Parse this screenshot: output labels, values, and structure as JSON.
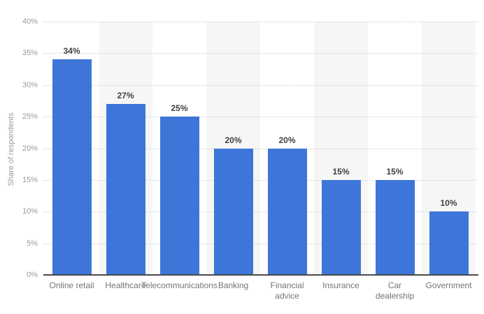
{
  "chart_data": {
    "type": "bar",
    "categories": [
      "Online retail",
      "Healthcare",
      "Telecommunications",
      "Banking",
      "Financial\nadvice",
      "Insurance",
      "Car\ndealership",
      "Government"
    ],
    "values": [
      34,
      27,
      25,
      20,
      20,
      15,
      15,
      10
    ],
    "value_labels": [
      "34%",
      "27%",
      "25%",
      "20%",
      "20%",
      "15%",
      "15%",
      "10%"
    ],
    "title": "",
    "xlabel": "",
    "ylabel": "Share of respondents",
    "ylim": [
      0,
      40
    ],
    "ytick_step": 5,
    "ytick_labels": [
      "0%",
      "5%",
      "10%",
      "15%",
      "20%",
      "25%",
      "30%",
      "35%",
      "40%"
    ],
    "grid": "horizontal-dotted",
    "legend": "none",
    "bar_color": "#3d76d8",
    "stripe_color": "#f6f6f6",
    "gridline_color": "#cfcfcf",
    "tick_label_color": "#989898",
    "value_label_color": "#3f3f3f",
    "category_label_color": "#747474",
    "axis_line_color": "#4a4a4a"
  }
}
